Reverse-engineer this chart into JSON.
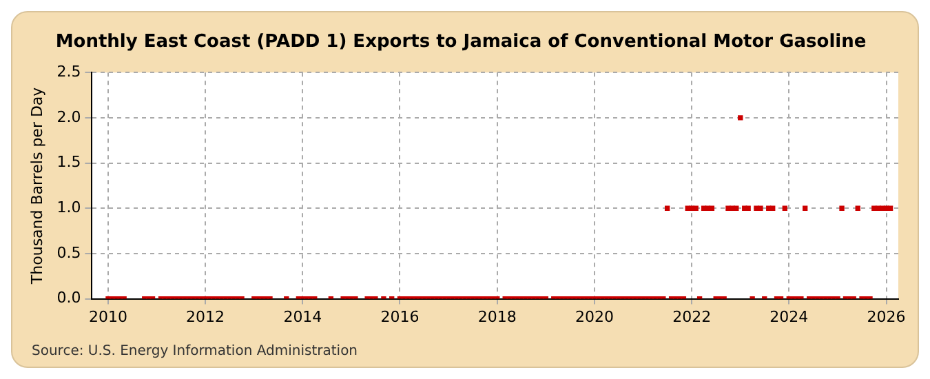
{
  "chart_data": {
    "type": "scatter",
    "title": "Monthly East Coast (PADD 1) Exports to Jamaica of Conventional Motor Gasoline",
    "ylabel": "Thousand Barrels per Day",
    "annotations": [
      "Source: U.S. Energy Information Administration"
    ],
    "x": [
      "2010-01",
      "2010-02",
      "2010-03",
      "2010-04",
      "2010-05",
      "2010-06",
      "2010-07",
      "2010-08",
      "2010-09",
      "2010-10",
      "2010-11",
      "2010-12",
      "2011-01",
      "2011-02",
      "2011-03",
      "2011-04",
      "2011-05",
      "2011-06",
      "2011-07",
      "2011-08",
      "2011-09",
      "2011-10",
      "2011-11",
      "2011-12",
      "2012-01",
      "2012-02",
      "2012-03",
      "2012-04",
      "2012-05",
      "2012-06",
      "2012-07",
      "2012-08",
      "2012-09",
      "2012-10",
      "2012-11",
      "2012-12",
      "2013-01",
      "2013-02",
      "2013-03",
      "2013-04",
      "2013-05",
      "2013-06",
      "2013-07",
      "2013-08",
      "2013-09",
      "2013-10",
      "2013-11",
      "2013-12",
      "2014-01",
      "2014-02",
      "2014-03",
      "2014-04",
      "2014-05",
      "2014-06",
      "2014-07",
      "2014-08",
      "2014-09",
      "2014-10",
      "2014-11",
      "2014-12",
      "2015-01",
      "2015-02",
      "2015-03",
      "2015-04",
      "2015-05",
      "2015-06",
      "2015-07",
      "2015-08",
      "2015-09",
      "2015-10",
      "2015-11",
      "2015-12",
      "2016-01",
      "2016-02",
      "2016-03",
      "2016-04",
      "2016-05",
      "2016-06",
      "2016-07",
      "2016-08",
      "2016-09",
      "2016-10",
      "2016-11",
      "2016-12",
      "2017-01",
      "2017-02",
      "2017-03",
      "2017-04",
      "2017-05",
      "2017-06",
      "2017-07",
      "2017-08",
      "2017-09",
      "2017-10",
      "2017-11",
      "2017-12",
      "2018-01",
      "2018-02",
      "2018-03",
      "2018-04",
      "2018-05",
      "2018-06",
      "2018-07",
      "2018-08",
      "2018-09",
      "2018-10",
      "2018-11",
      "2018-12",
      "2019-01",
      "2019-02",
      "2019-03",
      "2019-04",
      "2019-05",
      "2019-06",
      "2019-07",
      "2019-08",
      "2019-09",
      "2019-10",
      "2019-11",
      "2019-12",
      "2020-01",
      "2020-02",
      "2020-03",
      "2020-04",
      "2020-05",
      "2020-06",
      "2020-07",
      "2020-08",
      "2020-09",
      "2020-10",
      "2020-11",
      "2020-12",
      "2021-01",
      "2021-02",
      "2021-03",
      "2021-04",
      "2021-05",
      "2021-06",
      "2021-07",
      "2021-08",
      "2021-09",
      "2021-10",
      "2021-11",
      "2021-12",
      "2022-01",
      "2022-02",
      "2022-03",
      "2022-04",
      "2022-05",
      "2022-06",
      "2022-07",
      "2022-08",
      "2022-09",
      "2022-10",
      "2022-11",
      "2022-12",
      "2023-01",
      "2023-02",
      "2023-03",
      "2023-04",
      "2023-05",
      "2023-06",
      "2023-07",
      "2023-08",
      "2023-09",
      "2023-10",
      "2023-11",
      "2023-12",
      "2024-01",
      "2024-02",
      "2024-03",
      "2024-04",
      "2024-05",
      "2024-06",
      "2024-07",
      "2024-08",
      "2024-09",
      "2024-10",
      "2024-11",
      "2024-12",
      "2025-01",
      "2025-02",
      "2025-03",
      "2025-04",
      "2025-05",
      "2025-06",
      "2025-07",
      "2025-08",
      "2025-09",
      "2025-10",
      "2025-11",
      "2025-12",
      "2026-01",
      "2026-02"
    ],
    "values": [
      0,
      0,
      0,
      0,
      0,
      null,
      null,
      null,
      null,
      0,
      0,
      0,
      null,
      0,
      0,
      0,
      0,
      0,
      0,
      0,
      0,
      0,
      0,
      0,
      0,
      0,
      0,
      0,
      0,
      0,
      0,
      0,
      0,
      0,
      null,
      null,
      0,
      0,
      0,
      0,
      0,
      null,
      null,
      null,
      0,
      null,
      null,
      0,
      0,
      0,
      0,
      0,
      null,
      null,
      null,
      0,
      null,
      null,
      0,
      0,
      0,
      0,
      null,
      null,
      0,
      0,
      0,
      null,
      0,
      null,
      0,
      null,
      0,
      0,
      0,
      0,
      0,
      0,
      0,
      0,
      0,
      0,
      0,
      0,
      0,
      0,
      0,
      0,
      0,
      0,
      0,
      0,
      0,
      0,
      0,
      0,
      0,
      null,
      0,
      0,
      0,
      0,
      0,
      0,
      0,
      0,
      0,
      0,
      0,
      null,
      0,
      0,
      0,
      0,
      0,
      0,
      0,
      0,
      0,
      0,
      0,
      0,
      0,
      0,
      0,
      0,
      0,
      0,
      0,
      0,
      0,
      0,
      0,
      0,
      0,
      0,
      0,
      0,
      1,
      0,
      0,
      0,
      0,
      1,
      1,
      1,
      0,
      1,
      1,
      1,
      0,
      0,
      0,
      1,
      1,
      1,
      2,
      1,
      1,
      0,
      1,
      1,
      0,
      1,
      1,
      0,
      0,
      1,
      0,
      0,
      0,
      0,
      1,
      0,
      0,
      0,
      0,
      0,
      0,
      0,
      0,
      1,
      0,
      0,
      0,
      1,
      0,
      0,
      0,
      1,
      1,
      1,
      1,
      1
    ],
    "color": "#cc0000",
    "marker": "square",
    "xlim": [
      "2009-09",
      "2026-04"
    ],
    "xticks": [
      "2010",
      "2012",
      "2014",
      "2016",
      "2018",
      "2020",
      "2022",
      "2024",
      "2026"
    ],
    "ylim": [
      0,
      2.5
    ],
    "yticks": [
      {
        "value": 0,
        "label": "0.0"
      },
      {
        "value": 0.5,
        "label": "0.5"
      },
      {
        "value": 1,
        "label": "1.0"
      },
      {
        "value": 1.5,
        "label": "1.5"
      },
      {
        "value": 2,
        "label": "2.0"
      },
      {
        "value": 2.5,
        "label": "2.5"
      }
    ],
    "grid": true,
    "legend": false
  }
}
